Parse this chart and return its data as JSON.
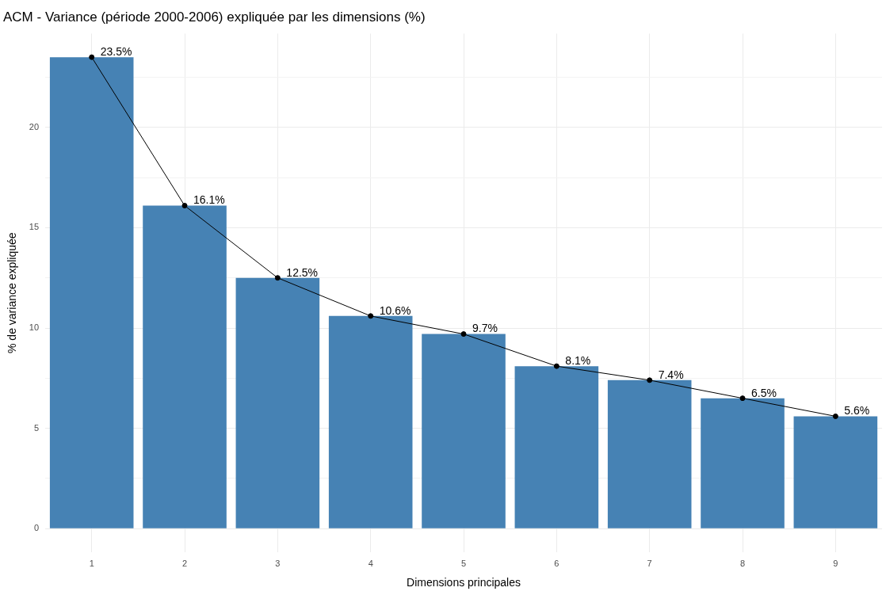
{
  "chart_data": {
    "type": "bar",
    "title": "ACM - Variance (période 2000-2006) expliquée par les dimensions (%)",
    "xlabel": "Dimensions principales",
    "ylabel": "% de variance expliquée",
    "categories": [
      "1",
      "2",
      "3",
      "4",
      "5",
      "6",
      "7",
      "8",
      "9"
    ],
    "series": [
      {
        "color": "#4682b4",
        "values": [
          23.5,
          16.1,
          12.5,
          10.6,
          9.7,
          8.1,
          7.4,
          6.5,
          5.6
        ]
      },
      {
        "type": "line",
        "color": "#000000",
        "marker": "circle",
        "line_style": "solid",
        "values": [
          23.5,
          16.1,
          12.5,
          10.6,
          9.7,
          8.1,
          7.4,
          6.5,
          5.6
        ],
        "value_labels": [
          "23.5%",
          "16.1%",
          "12.5%",
          "10.6%",
          "9.7%",
          "8.1%",
          "7.4%",
          "6.5%",
          "5.6%"
        ]
      }
    ],
    "ylim": [
      -1.175,
      24.675
    ],
    "yticks": [
      0,
      {
        "value": 2.5,
        "label": null
      },
      5,
      {
        "value": 7.5,
        "label": null
      },
      10,
      {
        "value": 12.5,
        "label": null
      },
      15,
      {
        "value": 17.5,
        "label": null
      },
      20,
      {
        "value": 22.5,
        "label": null
      }
    ],
    "grid": true,
    "legend": false
  }
}
